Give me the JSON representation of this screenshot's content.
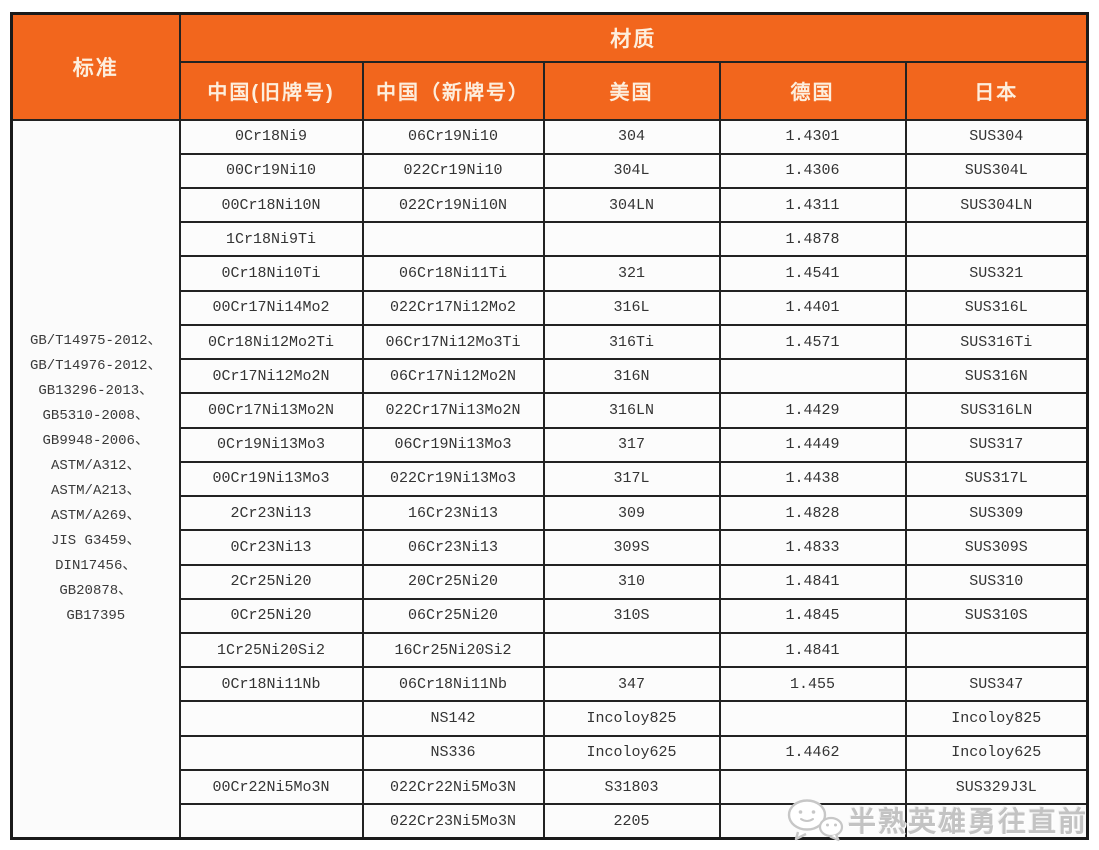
{
  "table": {
    "header": {
      "standard_label": "标准",
      "material_label": "材质",
      "columns": [
        "中国(旧牌号)",
        "中国（新牌号）",
        "美国",
        "德国",
        "日本"
      ]
    },
    "standards": [
      "GB/T14975-2012、",
      "GB/T14976-2012、",
      "GB13296-2013、",
      "GB5310-2008、",
      "GB9948-2006、",
      "ASTM/A312、",
      "ASTM/A213、",
      "ASTM/A269、",
      "JIS G3459、",
      "DIN17456、",
      "GB20878、",
      "GB17395"
    ],
    "rows": [
      {
        "old": "0Cr18Ni9",
        "new": "06Cr19Ni10",
        "us": "304",
        "de": "1.4301",
        "jp": "SUS304"
      },
      {
        "old": "00Cr19Ni10",
        "new": "022Cr19Ni10",
        "us": "304L",
        "de": "1.4306",
        "jp": "SUS304L"
      },
      {
        "old": "00Cr18Ni10N",
        "new": "022Cr19Ni10N",
        "us": "304LN",
        "de": "1.4311",
        "jp": "SUS304LN"
      },
      {
        "old": "1Cr18Ni9Ti",
        "new": "",
        "us": "",
        "de": "1.4878",
        "jp": ""
      },
      {
        "old": "0Cr18Ni10Ti",
        "new": "06Cr18Ni11Ti",
        "us": "321",
        "de": "1.4541",
        "jp": "SUS321"
      },
      {
        "old": "00Cr17Ni14Mo2",
        "new": "022Cr17Ni12Mo2",
        "us": "316L",
        "de": "1.4401",
        "jp": "SUS316L"
      },
      {
        "old": "0Cr18Ni12Mo2Ti",
        "new": "06Cr17Ni12Mo3Ti",
        "us": "316Ti",
        "de": "1.4571",
        "jp": "SUS316Ti"
      },
      {
        "old": "0Cr17Ni12Mo2N",
        "new": "06Cr17Ni12Mo2N",
        "us": "316N",
        "de": "",
        "jp": "SUS316N"
      },
      {
        "old": "00Cr17Ni13Mo2N",
        "new": "022Cr17Ni13Mo2N",
        "us": "316LN",
        "de": "1.4429",
        "jp": "SUS316LN"
      },
      {
        "old": "0Cr19Ni13Mo3",
        "new": "06Cr19Ni13Mo3",
        "us": "317",
        "de": "1.4449",
        "jp": "SUS317"
      },
      {
        "old": "00Cr19Ni13Mo3",
        "new": "022Cr19Ni13Mo3",
        "us": "317L",
        "de": "1.4438",
        "jp": "SUS317L"
      },
      {
        "old": "2Cr23Ni13",
        "new": "16Cr23Ni13",
        "us": "309",
        "de": "1.4828",
        "jp": "SUS309"
      },
      {
        "old": "0Cr23Ni13",
        "new": "06Cr23Ni13",
        "us": "309S",
        "de": "1.4833",
        "jp": "SUS309S"
      },
      {
        "old": "2Cr25Ni20",
        "new": "20Cr25Ni20",
        "us": "310",
        "de": "1.4841",
        "jp": "SUS310"
      },
      {
        "old": "0Cr25Ni20",
        "new": "06Cr25Ni20",
        "us": "310S",
        "de": "1.4845",
        "jp": "SUS310S"
      },
      {
        "old": "1Cr25Ni20Si2",
        "new": "16Cr25Ni20Si2",
        "us": "",
        "de": "1.4841",
        "jp": ""
      },
      {
        "old": "0Cr18Ni11Nb",
        "new": "06Cr18Ni11Nb",
        "us": "347",
        "de": "1.455",
        "jp": "SUS347"
      },
      {
        "old": "",
        "new": "NS142",
        "us": "Incoloy825",
        "de": "",
        "jp": "Incoloy825"
      },
      {
        "old": "",
        "new": "NS336",
        "us": "Incoloy625",
        "de": "1.4462",
        "jp": "Incoloy625"
      },
      {
        "old": "00Cr22Ni5Mo3N",
        "new": "022Cr22Ni5Mo3N",
        "us": "S31803",
        "de": "",
        "jp": "SUS329J3L"
      },
      {
        "old": "",
        "new": "022Cr23Ni5Mo3N",
        "us": "2205",
        "de": "",
        "jp": ""
      }
    ]
  },
  "watermark": {
    "text": "半熟英雄勇往直前",
    "icon": "wechat-emoji-icon"
  },
  "colors": {
    "accent_orange": "#f2661d",
    "header_text": "#fdeedd",
    "border": "#222222",
    "body_text": "#333333",
    "watermark_gray": "#c3c3c3"
  }
}
